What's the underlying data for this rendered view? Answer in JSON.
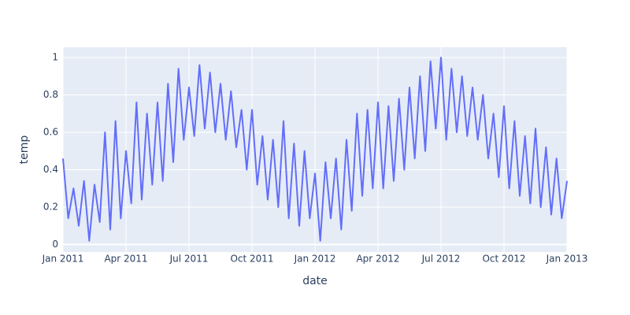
{
  "chart_data": {
    "type": "line",
    "x_label": "date",
    "y_label": "temp",
    "color": "#636efa",
    "x": [
      0,
      0.25,
      0.5,
      0.75,
      1,
      1.25,
      1.5,
      1.75,
      2,
      2.25,
      2.5,
      2.75,
      3,
      3.25,
      3.5,
      3.75,
      4,
      4.25,
      4.5,
      4.75,
      5,
      5.25,
      5.5,
      5.75,
      6,
      6.25,
      6.5,
      6.75,
      7,
      7.25,
      7.5,
      7.75,
      8,
      8.25,
      8.5,
      8.75,
      9,
      9.25,
      9.5,
      9.75,
      10,
      10.25,
      10.5,
      10.75,
      11,
      11.25,
      11.5,
      11.75,
      12,
      12.25,
      12.5,
      12.75,
      13,
      13.25,
      13.5,
      13.75,
      14,
      14.25,
      14.5,
      14.75,
      15,
      15.25,
      15.5,
      15.75,
      16,
      16.25,
      16.5,
      16.75,
      17,
      17.25,
      17.5,
      17.75,
      18,
      18.25,
      18.5,
      18.75,
      19,
      19.25,
      19.5,
      19.75,
      20,
      20.25,
      20.5,
      20.75,
      21,
      21.25,
      21.5,
      21.75,
      22,
      22.25,
      22.5,
      22.75,
      23,
      23.25,
      23.5,
      23.75,
      24
    ],
    "values": [
      0.46,
      0.14,
      0.3,
      0.1,
      0.34,
      0.02,
      0.32,
      0.12,
      0.6,
      0.08,
      0.66,
      0.14,
      0.5,
      0.22,
      0.76,
      0.24,
      0.7,
      0.32,
      0.76,
      0.34,
      0.86,
      0.44,
      0.94,
      0.56,
      0.84,
      0.58,
      0.96,
      0.62,
      0.92,
      0.6,
      0.86,
      0.56,
      0.82,
      0.52,
      0.72,
      0.4,
      0.72,
      0.32,
      0.58,
      0.24,
      0.56,
      0.2,
      0.66,
      0.14,
      0.54,
      0.1,
      0.5,
      0.14,
      0.38,
      0.02,
      0.44,
      0.14,
      0.46,
      0.08,
      0.56,
      0.18,
      0.7,
      0.26,
      0.72,
      0.3,
      0.76,
      0.3,
      0.74,
      0.34,
      0.78,
      0.4,
      0.84,
      0.46,
      0.9,
      0.5,
      0.98,
      0.62,
      1.0,
      0.56,
      0.94,
      0.6,
      0.9,
      0.58,
      0.84,
      0.56,
      0.8,
      0.46,
      0.7,
      0.36,
      0.74,
      0.3,
      0.66,
      0.26,
      0.58,
      0.22,
      0.62,
      0.2,
      0.52,
      0.16,
      0.46,
      0.14,
      0.34
    ],
    "xlim": [
      0,
      24
    ],
    "xticks": [
      {
        "value": 0,
        "label": "Jan 2011"
      },
      {
        "value": 3,
        "label": "Apr 2011"
      },
      {
        "value": 6,
        "label": "Jul 2011"
      },
      {
        "value": 9,
        "label": "Oct 2011"
      },
      {
        "value": 12,
        "label": "Jan 2012"
      },
      {
        "value": 15,
        "label": "Apr 2012"
      },
      {
        "value": 18,
        "label": "Jul 2012"
      },
      {
        "value": 21,
        "label": "Oct 2012"
      },
      {
        "value": 24,
        "label": "Jan 2013"
      }
    ],
    "ylim": [
      -0.04,
      1.055
    ],
    "yticks": [
      0,
      0.2,
      0.4,
      0.6,
      0.8,
      1
    ],
    "grid": true
  }
}
